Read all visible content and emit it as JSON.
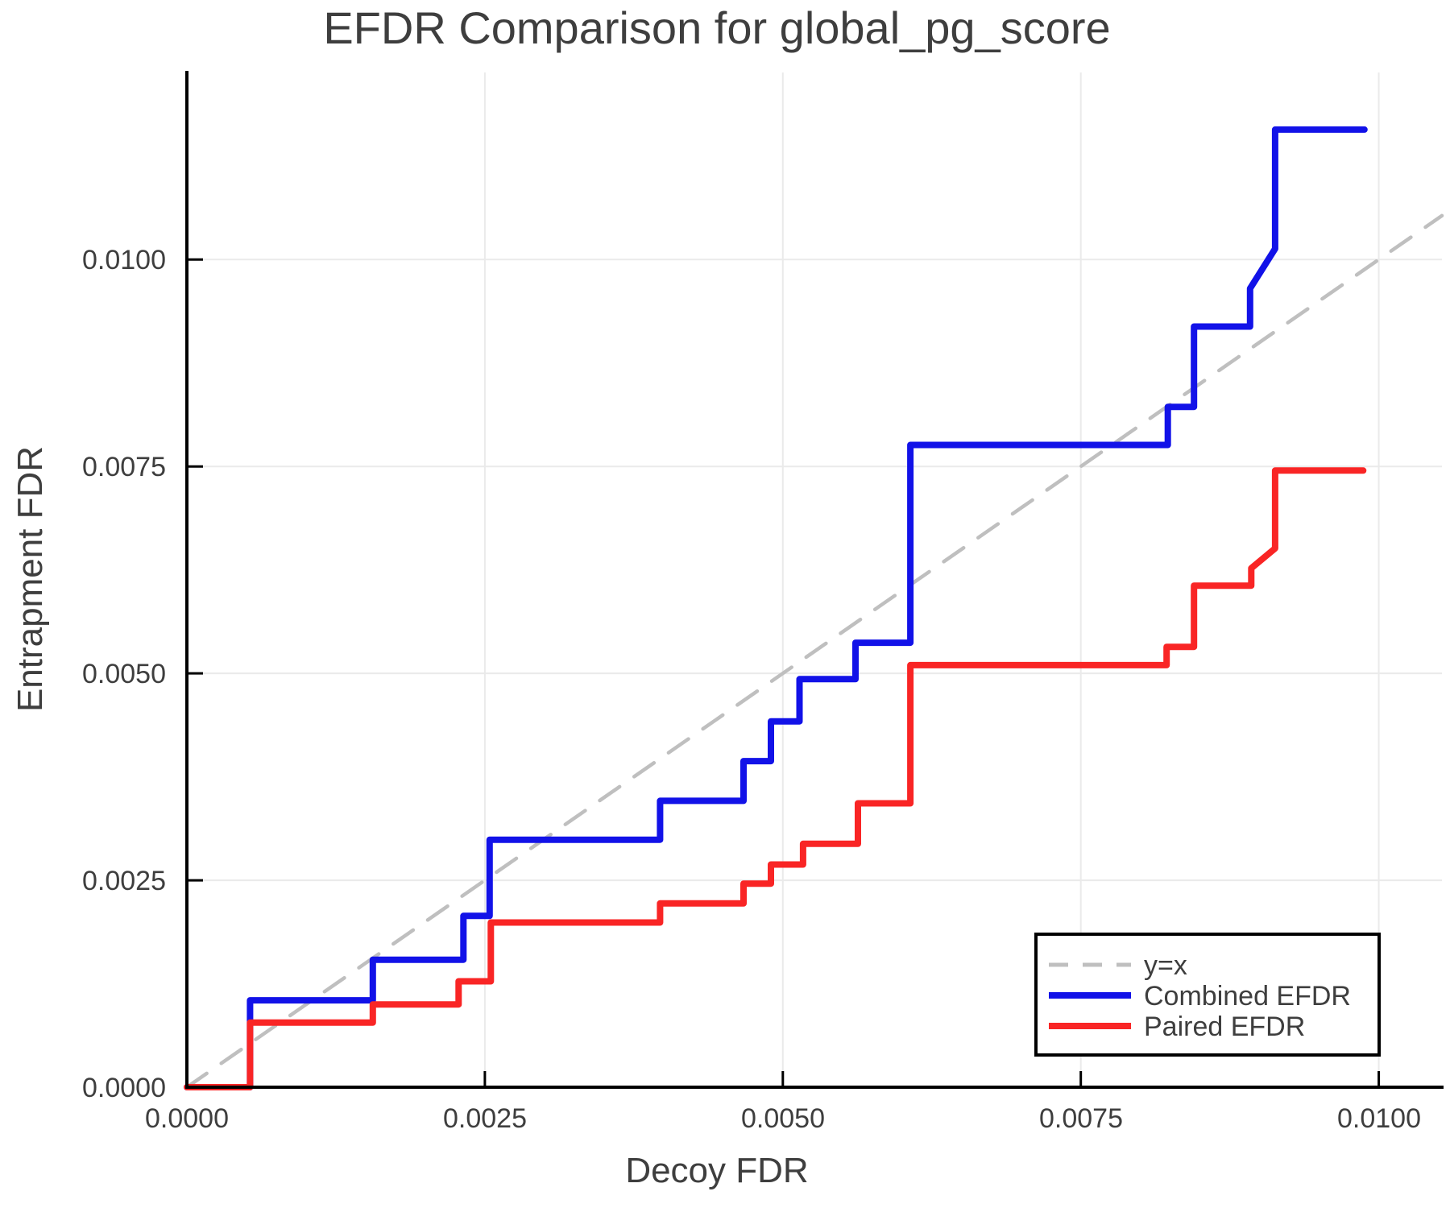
{
  "title": "EFDR Comparison for global_pg_score",
  "chart_data": {
    "type": "line",
    "title": "EFDR Comparison for global_pg_score",
    "xlabel": "Decoy FDR",
    "ylabel": "Entrapment FDR",
    "xlim": [
      0,
      0.01053
    ],
    "ylim": [
      0,
      0.01226
    ],
    "grid": true,
    "legend_position": "lower right",
    "x_ticks": [
      {
        "v": 0.0,
        "label": "0.0000"
      },
      {
        "v": 0.0025,
        "label": "0.0025"
      },
      {
        "v": 0.005,
        "label": "0.0050"
      },
      {
        "v": 0.0075,
        "label": "0.0075"
      },
      {
        "v": 0.01,
        "label": "0.0100"
      }
    ],
    "y_ticks": [
      {
        "v": 0.0,
        "label": "0.0000"
      },
      {
        "v": 0.0025,
        "label": "0.0025"
      },
      {
        "v": 0.005,
        "label": "0.0050"
      },
      {
        "v": 0.0075,
        "label": "0.0075"
      },
      {
        "v": 0.01,
        "label": "0.0100"
      }
    ],
    "colors": {
      "identity": "#bfbfbf",
      "combined": "#1212e8",
      "paired": "#f92525",
      "grid": "#eaeaea",
      "axis": "#000000",
      "text": "#3e3e3e"
    },
    "series": [
      {
        "key": "identity-line",
        "name": "y=x",
        "color": "#bfbfbf",
        "style": "dashed",
        "width": 4.5,
        "points": [
          [
            0,
            0
          ],
          [
            0.01053,
            0.01053
          ]
        ]
      },
      {
        "key": "combined-efdr-line",
        "name": "Combined EFDR",
        "color": "#1212e8",
        "style": "solid",
        "width": 8,
        "points": [
          [
            0,
            0
          ],
          [
            0.00053,
            0
          ],
          [
            0.00053,
            0.00105
          ],
          [
            0.00156,
            0.00105
          ],
          [
            0.00156,
            0.00154
          ],
          [
            0.00232,
            0.00154
          ],
          [
            0.00232,
            0.00207
          ],
          [
            0.00254,
            0.00207
          ],
          [
            0.00254,
            0.00299
          ],
          [
            0.00397,
            0.00299
          ],
          [
            0.00397,
            0.00346
          ],
          [
            0.00467,
            0.00346
          ],
          [
            0.00467,
            0.00394
          ],
          [
            0.0049,
            0.00394
          ],
          [
            0.0049,
            0.00442
          ],
          [
            0.00514,
            0.00442
          ],
          [
            0.00514,
            0.00493
          ],
          [
            0.00561,
            0.00493
          ],
          [
            0.00561,
            0.00537
          ],
          [
            0.00607,
            0.00537
          ],
          [
            0.00607,
            0.00776
          ],
          [
            0.00823,
            0.00776
          ],
          [
            0.00823,
            0.00822
          ],
          [
            0.00845,
            0.00822
          ],
          [
            0.00845,
            0.00919
          ],
          [
            0.00892,
            0.00919
          ],
          [
            0.00892,
            0.00965
          ],
          [
            0.00913,
            0.01013
          ],
          [
            0.00913,
            0.01157
          ],
          [
            0.00988,
            0.01157
          ]
        ]
      },
      {
        "key": "paired-efdr-line",
        "name": "Paired EFDR",
        "color": "#f92525",
        "style": "solid",
        "width": 8,
        "points": [
          [
            0,
            0
          ],
          [
            0.00053,
            0
          ],
          [
            0.00053,
            0.00078
          ],
          [
            0.00156,
            0.00078
          ],
          [
            0.00156,
            0.001
          ],
          [
            0.00228,
            0.001
          ],
          [
            0.00228,
            0.00128
          ],
          [
            0.00255,
            0.00128
          ],
          [
            0.00255,
            0.00199
          ],
          [
            0.00397,
            0.00199
          ],
          [
            0.00397,
            0.00222
          ],
          [
            0.00467,
            0.00222
          ],
          [
            0.00467,
            0.00246
          ],
          [
            0.0049,
            0.00246
          ],
          [
            0.0049,
            0.00269
          ],
          [
            0.00517,
            0.00269
          ],
          [
            0.00517,
            0.00294
          ],
          [
            0.00563,
            0.00294
          ],
          [
            0.00563,
            0.00343
          ],
          [
            0.00607,
            0.00343
          ],
          [
            0.00607,
            0.0051
          ],
          [
            0.00822,
            0.0051
          ],
          [
            0.00822,
            0.00532
          ],
          [
            0.00845,
            0.00532
          ],
          [
            0.00845,
            0.00606
          ],
          [
            0.00893,
            0.00606
          ],
          [
            0.00893,
            0.00627
          ],
          [
            0.00913,
            0.00651
          ],
          [
            0.00913,
            0.00745
          ],
          [
            0.00987,
            0.00745
          ]
        ]
      }
    ]
  },
  "legend": {
    "entries": [
      {
        "label": "y=x"
      },
      {
        "label": "Combined EFDR"
      },
      {
        "label": "Paired EFDR"
      }
    ]
  }
}
